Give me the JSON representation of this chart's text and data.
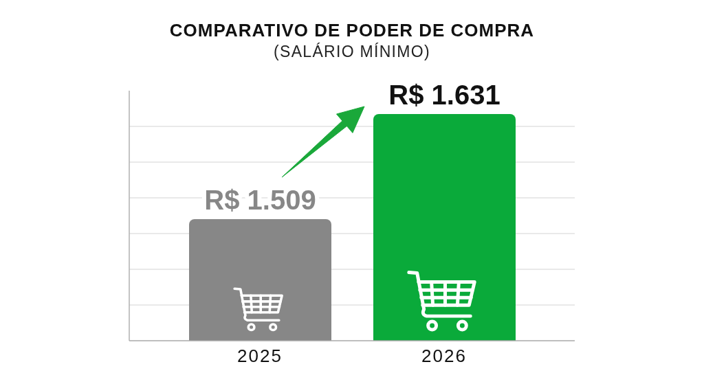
{
  "chart_data": {
    "type": "bar",
    "title": "COMPARATIVO DE PODER DE COMPRA",
    "subtitle": "(SALÁRIO MÍNIMO)",
    "categories": [
      "2025",
      "2026"
    ],
    "values": [
      1509,
      1631
    ],
    "colors": [
      "#878787",
      "#0aaa3a"
    ],
    "value_labels": [
      "R$ 1.509",
      "R$ 1.631"
    ],
    "ylim": [
      1368,
      1658
    ],
    "grid": "y",
    "tick_labels": "x"
  }
}
